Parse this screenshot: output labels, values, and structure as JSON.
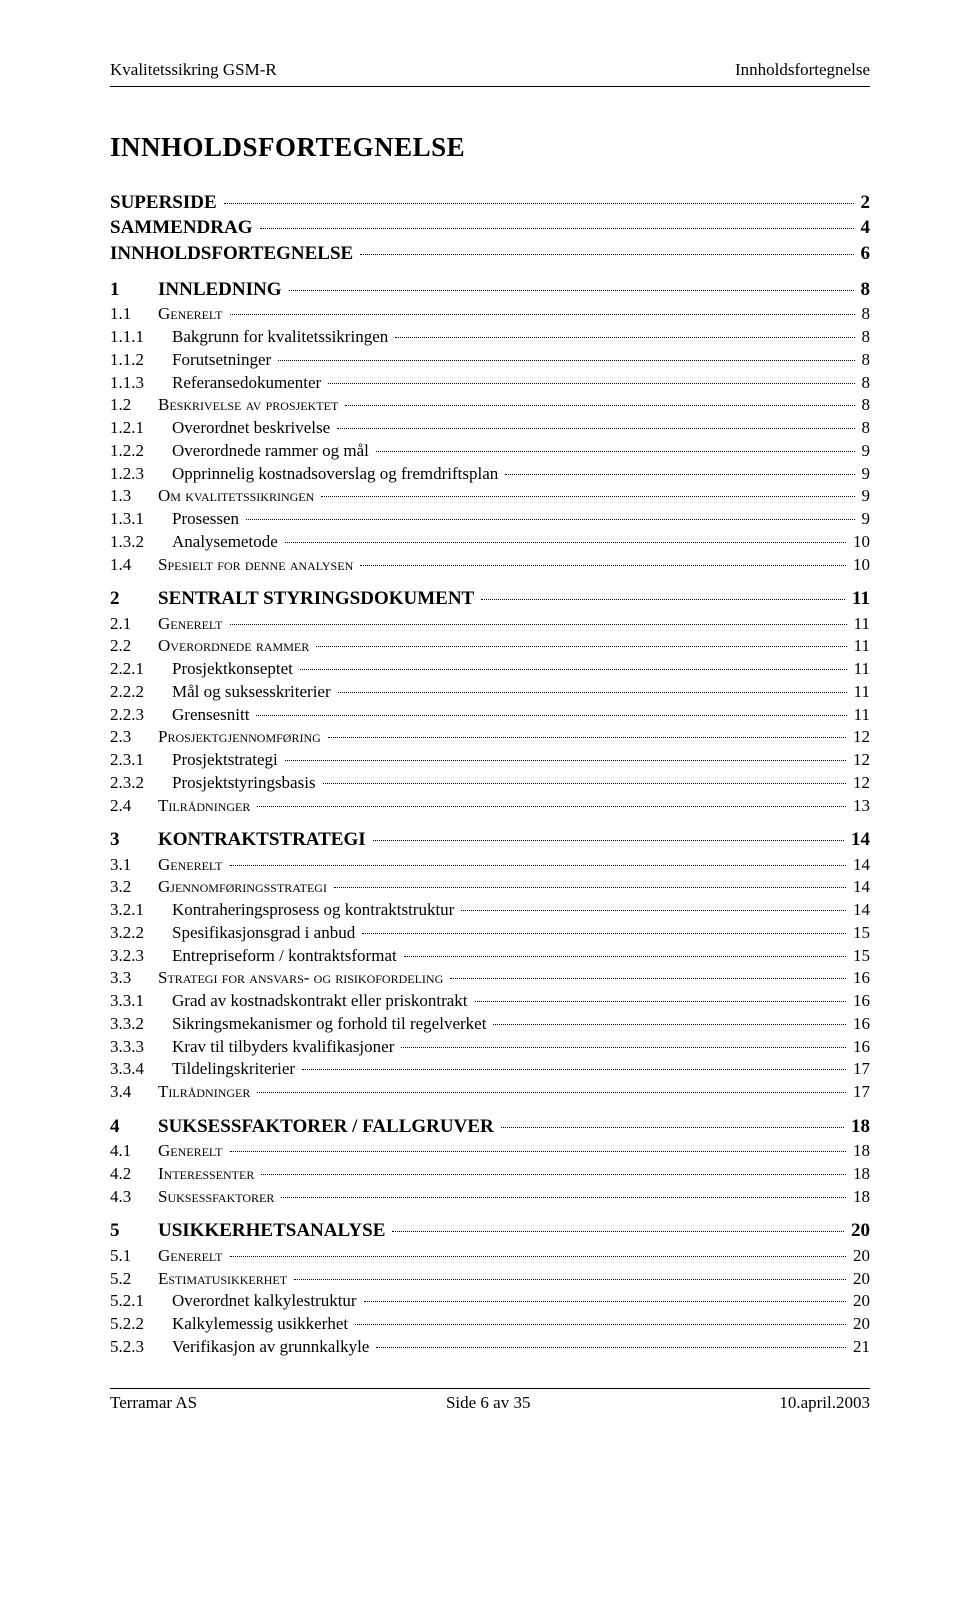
{
  "header": {
    "left": "Kvalitetssikring GSM-R",
    "right": "Innholdsfortegnelse"
  },
  "title": "INNHOLDSFORTEGNELSE",
  "toc": [
    {
      "level": 1,
      "num": "",
      "label": "SUPERSIDE",
      "page": "2"
    },
    {
      "level": 1,
      "num": "",
      "label": "SAMMENDRAG",
      "page": "4"
    },
    {
      "level": 1,
      "num": "",
      "label": "INNHOLDSFORTEGNELSE",
      "page": "6"
    },
    {
      "level": 1,
      "num": "1",
      "label": "INNLEDNING",
      "page": "8"
    },
    {
      "level": 2,
      "num": "1.1",
      "label": "Generelt",
      "page": "8"
    },
    {
      "level": 3,
      "num": "1.1.1",
      "label": "Bakgrunn for kvalitetssikringen",
      "page": "8"
    },
    {
      "level": 3,
      "num": "1.1.2",
      "label": "Forutsetninger",
      "page": "8"
    },
    {
      "level": 3,
      "num": "1.1.3",
      "label": "Referansedokumenter",
      "page": "8"
    },
    {
      "level": 2,
      "num": "1.2",
      "label": "Beskrivelse av prosjektet",
      "page": "8"
    },
    {
      "level": 3,
      "num": "1.2.1",
      "label": "Overordnet beskrivelse",
      "page": "8"
    },
    {
      "level": 3,
      "num": "1.2.2",
      "label": "Overordnede rammer og mål",
      "page": "9"
    },
    {
      "level": 3,
      "num": "1.2.3",
      "label": "Opprinnelig kostnadsoverslag og fremdriftsplan",
      "page": "9"
    },
    {
      "level": 2,
      "num": "1.3",
      "label": "Om kvalitetssikringen",
      "page": "9"
    },
    {
      "level": 3,
      "num": "1.3.1",
      "label": "Prosessen",
      "page": "9"
    },
    {
      "level": 3,
      "num": "1.3.2",
      "label": "Analysemetode",
      "page": "10"
    },
    {
      "level": 2,
      "num": "1.4",
      "label": "Spesielt for denne analysen",
      "page": "10"
    },
    {
      "level": 1,
      "num": "2",
      "label": "SENTRALT STYRINGSDOKUMENT",
      "page": "11"
    },
    {
      "level": 2,
      "num": "2.1",
      "label": "Generelt",
      "page": "11"
    },
    {
      "level": 2,
      "num": "2.2",
      "label": "Overordnede rammer",
      "page": "11"
    },
    {
      "level": 3,
      "num": "2.2.1",
      "label": "Prosjektkonseptet",
      "page": "11"
    },
    {
      "level": 3,
      "num": "2.2.2",
      "label": "Mål og suksesskriterier",
      "page": "11"
    },
    {
      "level": 3,
      "num": "2.2.3",
      "label": "Grensesnitt",
      "page": "11"
    },
    {
      "level": 2,
      "num": "2.3",
      "label": "Prosjektgjennomføring",
      "page": "12"
    },
    {
      "level": 3,
      "num": "2.3.1",
      "label": "Prosjektstrategi",
      "page": "12"
    },
    {
      "level": 3,
      "num": "2.3.2",
      "label": "Prosjektstyringsbasis",
      "page": "12"
    },
    {
      "level": 2,
      "num": "2.4",
      "label": "Tilrådninger",
      "page": "13"
    },
    {
      "level": 1,
      "num": "3",
      "label": "KONTRAKTSTRATEGI",
      "page": "14"
    },
    {
      "level": 2,
      "num": "3.1",
      "label": "Generelt",
      "page": "14"
    },
    {
      "level": 2,
      "num": "3.2",
      "label": "Gjennomføringsstrategi",
      "page": "14"
    },
    {
      "level": 3,
      "num": "3.2.1",
      "label": "Kontraheringsprosess og kontraktstruktur",
      "page": "14"
    },
    {
      "level": 3,
      "num": "3.2.2",
      "label": "Spesifikasjonsgrad i anbud",
      "page": "15"
    },
    {
      "level": 3,
      "num": "3.2.3",
      "label": "Entrepriseform / kontraktsformat",
      "page": "15"
    },
    {
      "level": 2,
      "num": "3.3",
      "label": "Strategi for ansvars- og risikofordeling",
      "page": "16"
    },
    {
      "level": 3,
      "num": "3.3.1",
      "label": "Grad av kostnadskontrakt eller priskontrakt",
      "page": "16"
    },
    {
      "level": 3,
      "num": "3.3.2",
      "label": "Sikringsmekanismer og forhold til regelverket",
      "page": "16"
    },
    {
      "level": 3,
      "num": "3.3.3",
      "label": "Krav til tilbyders kvalifikasjoner",
      "page": "16"
    },
    {
      "level": 3,
      "num": "3.3.4",
      "label": "Tildelingskriterier",
      "page": "17"
    },
    {
      "level": 2,
      "num": "3.4",
      "label": "Tilrådninger",
      "page": "17"
    },
    {
      "level": 1,
      "num": "4",
      "label": "SUKSESSFAKTORER / FALLGRUVER",
      "page": "18"
    },
    {
      "level": 2,
      "num": "4.1",
      "label": "Generelt",
      "page": "18"
    },
    {
      "level": 2,
      "num": "4.2",
      "label": "Interessenter",
      "page": "18"
    },
    {
      "level": 2,
      "num": "4.3",
      "label": "Suksessfaktorer",
      "page": "18"
    },
    {
      "level": 1,
      "num": "5",
      "label": "USIKKERHETSANALYSE",
      "page": "20"
    },
    {
      "level": 2,
      "num": "5.1",
      "label": "Generelt",
      "page": "20"
    },
    {
      "level": 2,
      "num": "5.2",
      "label": "Estimatusikkerhet",
      "page": "20"
    },
    {
      "level": 3,
      "num": "5.2.1",
      "label": "Overordnet kalkylestruktur",
      "page": "20"
    },
    {
      "level": 3,
      "num": "5.2.2",
      "label": "Kalkylemessig usikkerhet",
      "page": "20"
    },
    {
      "level": 3,
      "num": "5.2.3",
      "label": "Verifikasjon av grunnkalkyle",
      "page": "21"
    }
  ],
  "footer": {
    "left": "Terramar AS",
    "center": "Side 6 av 35",
    "right": "10.april.2003"
  }
}
